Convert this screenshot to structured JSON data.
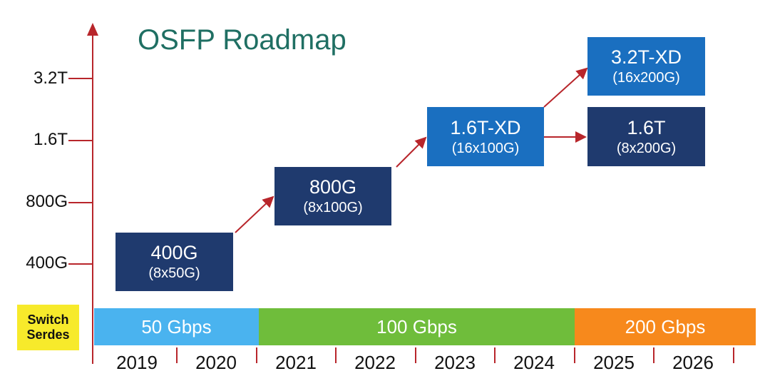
{
  "title": "OSFP Roadmap",
  "y_levels": [
    "3.2T",
    "1.6T",
    "800G",
    "400G"
  ],
  "switch_serdes": {
    "line1": "Switch",
    "line2": "Serdes"
  },
  "bands": [
    {
      "label": "50 Gbps",
      "color": "#4ab3ef"
    },
    {
      "label": "100 Gbps",
      "color": "#6fbd3b"
    },
    {
      "label": "200 Gbps",
      "color": "#f7891c"
    }
  ],
  "years": [
    "2019",
    "2020",
    "2021",
    "2022",
    "2023",
    "2024",
    "2025",
    "2026"
  ],
  "modules": [
    {
      "main": "400G",
      "sub": "(8x50G)",
      "color": "#1f3a6e"
    },
    {
      "main": "800G",
      "sub": "(8x100G)",
      "color": "#1f3a6e"
    },
    {
      "main": "1.6T-XD",
      "sub": "(16x100G)",
      "color": "#1a6fc0"
    },
    {
      "main": "3.2T-XD",
      "sub": "(16x200G)",
      "color": "#1a6fc0"
    },
    {
      "main": "1.6T",
      "sub": "(8x200G)",
      "color": "#1f3a6e"
    }
  ],
  "colors": {
    "axis": "#b8262b",
    "title": "#1f6f63",
    "serdes_bg": "#f7ea2b"
  }
}
